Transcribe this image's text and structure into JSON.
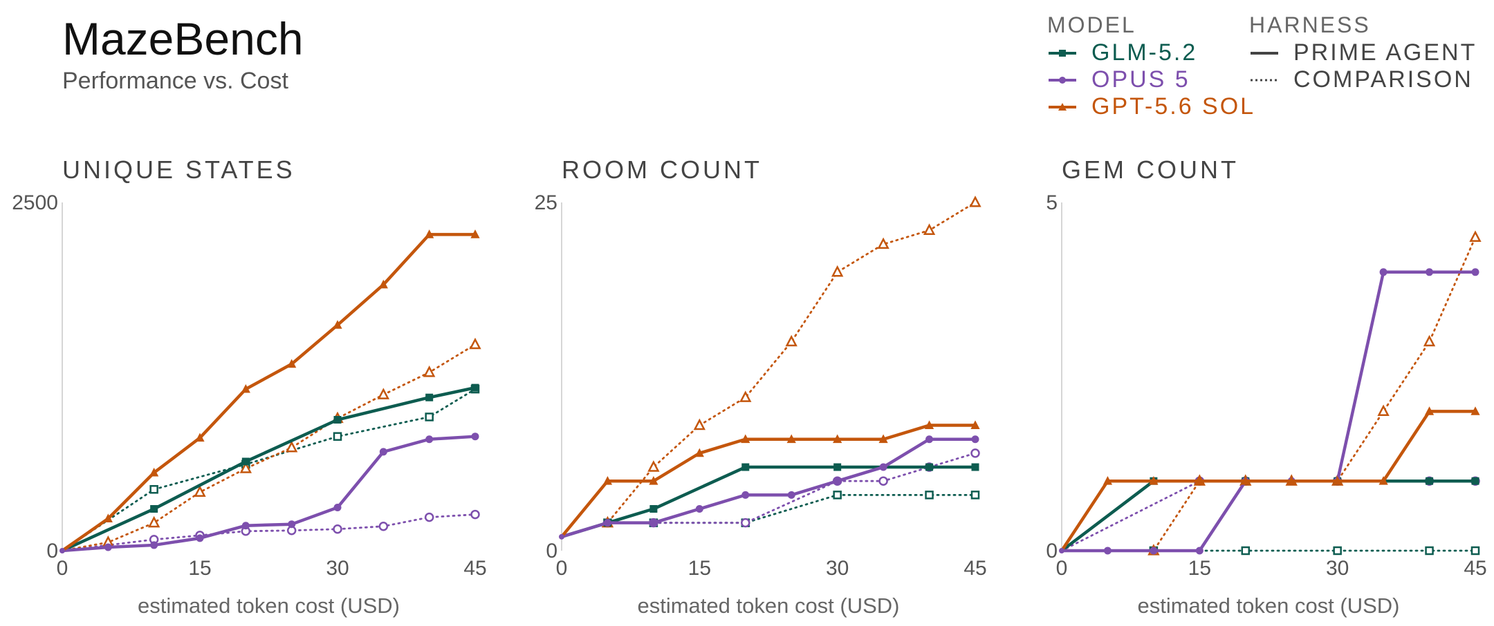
{
  "header": {
    "title": "MazeBench",
    "subtitle": "Performance vs. Cost"
  },
  "legend": {
    "model_heading": "MODEL",
    "harness_heading": "HARNESS",
    "models": [
      {
        "label": "GLM-5.2",
        "color": "#0d5c50",
        "marker": "square"
      },
      {
        "label": "OPUS 5",
        "color": "#7d4fad",
        "marker": "circle"
      },
      {
        "label": "GPT-5.6 SOL",
        "color": "#c4560c",
        "marker": "triangle"
      }
    ],
    "harnesses": [
      {
        "label": "PRIME AGENT",
        "style": "solid"
      },
      {
        "label": "COMPARISON",
        "style": "dotted"
      }
    ]
  },
  "chart_data": [
    {
      "type": "line",
      "title": "UNIQUE STATES",
      "xlabel": "estimated token cost (USD)",
      "ylabel": "",
      "xlim": [
        0,
        45
      ],
      "ylim": [
        0,
        2500
      ],
      "xticks": [
        "0",
        "15",
        "30",
        "45"
      ],
      "yticks": [
        "0",
        "2500"
      ],
      "series": [
        {
          "model": "GLM-5.2",
          "harness": "PRIME AGENT",
          "x": [
            0,
            10,
            20,
            30,
            40,
            45
          ],
          "y": [
            0,
            300,
            640,
            940,
            1100,
            1170
          ]
        },
        {
          "model": "GLM-5.2",
          "harness": "COMPARISON",
          "x": [
            0,
            10,
            20,
            30,
            40,
            45
          ],
          "y": [
            0,
            440,
            620,
            820,
            960,
            1160
          ]
        },
        {
          "model": "OPUS 5",
          "harness": "PRIME AGENT",
          "x": [
            0,
            5,
            10,
            15,
            20,
            25,
            30,
            35,
            40,
            45
          ],
          "y": [
            0,
            25,
            40,
            90,
            180,
            190,
            310,
            710,
            800,
            820
          ]
        },
        {
          "model": "OPUS 5",
          "harness": "COMPARISON",
          "x": [
            0,
            10,
            15,
            20,
            25,
            30,
            35,
            40,
            45
          ],
          "y": [
            0,
            80,
            110,
            140,
            145,
            155,
            175,
            240,
            260
          ]
        },
        {
          "model": "GPT-5.6 SOL",
          "harness": "PRIME AGENT",
          "x": [
            0,
            5,
            10,
            15,
            20,
            25,
            30,
            35,
            40,
            45
          ],
          "y": [
            0,
            230,
            560,
            810,
            1160,
            1340,
            1620,
            1910,
            2270,
            2270
          ]
        },
        {
          "model": "GPT-5.6 SOL",
          "harness": "COMPARISON",
          "x": [
            0,
            5,
            10,
            15,
            20,
            25,
            30,
            35,
            40,
            45
          ],
          "y": [
            0,
            60,
            200,
            420,
            590,
            740,
            950,
            1120,
            1280,
            1480
          ]
        }
      ]
    },
    {
      "type": "line",
      "title": "ROOM COUNT",
      "xlabel": "estimated token cost (USD)",
      "ylabel": "",
      "xlim": [
        0,
        45
      ],
      "ylim": [
        0,
        25
      ],
      "xticks": [
        "0",
        "15",
        "30",
        "45"
      ],
      "yticks": [
        "0",
        "25"
      ],
      "series": [
        {
          "model": "GLM-5.2",
          "harness": "PRIME AGENT",
          "x": [
            0,
            5,
            10,
            20,
            30,
            40,
            45
          ],
          "y": [
            1,
            2,
            3,
            6,
            6,
            6,
            6
          ]
        },
        {
          "model": "GLM-5.2",
          "harness": "COMPARISON",
          "x": [
            0,
            5,
            10,
            20,
            30,
            40,
            45
          ],
          "y": [
            1,
            2,
            2,
            2,
            4,
            4,
            4
          ]
        },
        {
          "model": "OPUS 5",
          "harness": "PRIME AGENT",
          "x": [
            0,
            5,
            10,
            15,
            20,
            25,
            30,
            35,
            40,
            45
          ],
          "y": [
            1,
            2,
            2,
            3,
            4,
            4,
            5,
            6,
            8,
            8
          ]
        },
        {
          "model": "OPUS 5",
          "harness": "COMPARISON",
          "x": [
            0,
            5,
            10,
            20,
            30,
            35,
            40,
            45
          ],
          "y": [
            1,
            2,
            2,
            2,
            5,
            5,
            6,
            7
          ]
        },
        {
          "model": "GPT-5.6 SOL",
          "harness": "PRIME AGENT",
          "x": [
            0,
            5,
            10,
            15,
            20,
            25,
            30,
            35,
            40,
            45
          ],
          "y": [
            1,
            5,
            5,
            7,
            8,
            8,
            8,
            8,
            9,
            9
          ]
        },
        {
          "model": "GPT-5.6 SOL",
          "harness": "COMPARISON",
          "x": [
            0,
            5,
            10,
            15,
            20,
            25,
            30,
            35,
            40,
            45
          ],
          "y": [
            1,
            2,
            6,
            9,
            11,
            15,
            20,
            22,
            23,
            25
          ]
        }
      ]
    },
    {
      "type": "line",
      "title": "GEM COUNT",
      "xlabel": "estimated token cost (USD)",
      "ylabel": "",
      "xlim": [
        0,
        45
      ],
      "ylim": [
        0,
        5
      ],
      "xticks": [
        "0",
        "15",
        "30",
        "45"
      ],
      "yticks": [
        "0",
        "5"
      ],
      "series": [
        {
          "model": "GLM-5.2",
          "harness": "PRIME AGENT",
          "x": [
            0,
            10,
            20,
            30,
            40,
            45
          ],
          "y": [
            0,
            1,
            1,
            1,
            1,
            1
          ]
        },
        {
          "model": "GLM-5.2",
          "harness": "COMPARISON",
          "x": [
            0,
            10,
            20,
            30,
            40,
            45
          ],
          "y": [
            0,
            0,
            0,
            0,
            0,
            0
          ]
        },
        {
          "model": "OPUS 5",
          "harness": "PRIME AGENT",
          "x": [
            0,
            5,
            10,
            15,
            20,
            25,
            30,
            35,
            40,
            45
          ],
          "y": [
            0,
            0,
            0,
            0,
            1,
            1,
            1,
            4,
            4,
            4
          ]
        },
        {
          "model": "OPUS 5",
          "harness": "COMPARISON",
          "x": [
            0,
            15,
            20,
            30,
            40,
            45
          ],
          "y": [
            0,
            1,
            1,
            1,
            1,
            1
          ]
        },
        {
          "model": "GPT-5.6 SOL",
          "harness": "PRIME AGENT",
          "x": [
            0,
            5,
            10,
            15,
            20,
            25,
            30,
            35,
            40,
            45
          ],
          "y": [
            0,
            1,
            1,
            1,
            1,
            1,
            1,
            1,
            2,
            2
          ]
        },
        {
          "model": "GPT-5.6 SOL",
          "harness": "COMPARISON",
          "x": [
            0,
            10,
            15,
            20,
            25,
            30,
            35,
            40,
            45
          ],
          "y": [
            0,
            0,
            1,
            1,
            1,
            1,
            2,
            3,
            4.5
          ]
        }
      ]
    }
  ]
}
